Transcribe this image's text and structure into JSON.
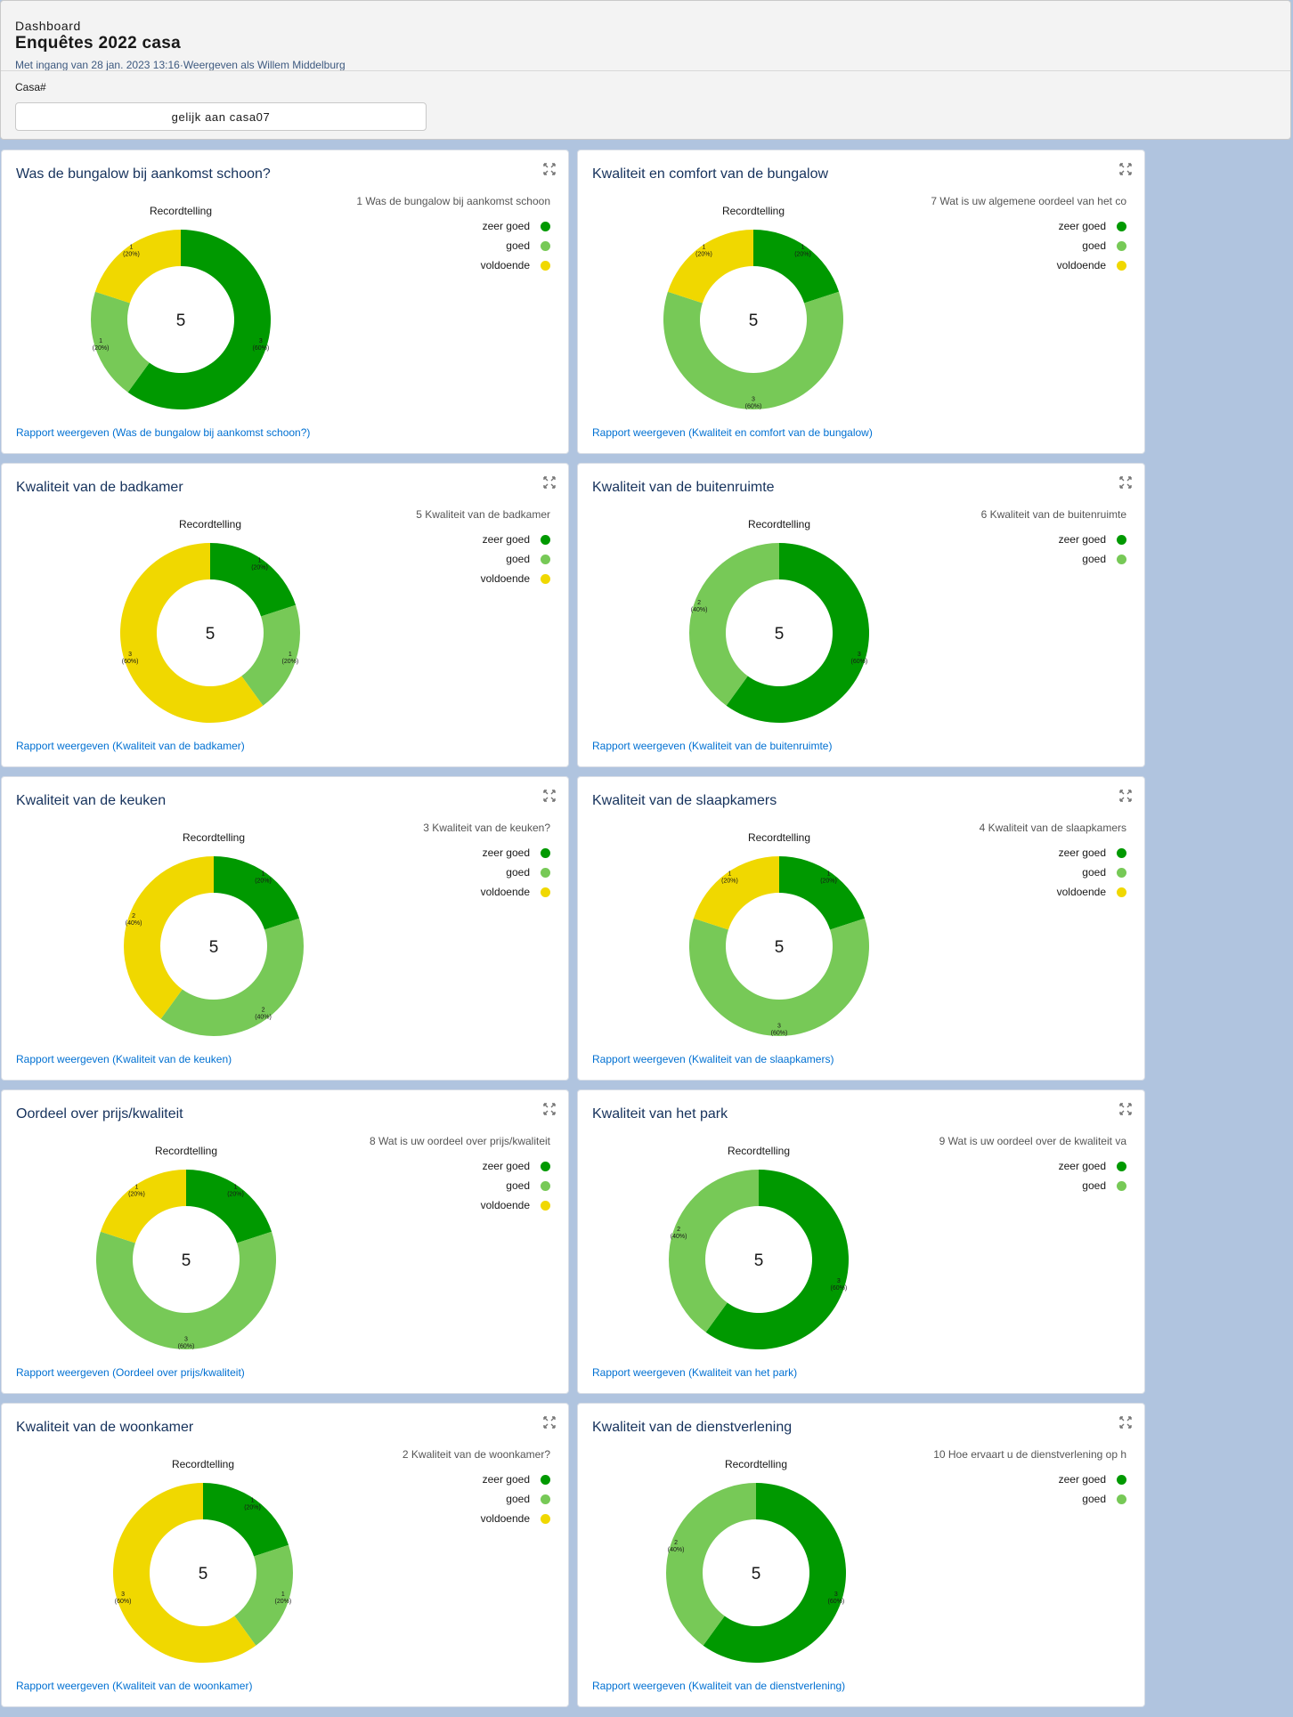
{
  "header": {
    "breadcrumb": "Dashboard",
    "title": "Enquêtes 2022 casa",
    "as_of": "Met ingang van 28 jan. 2023 13:16",
    "separator": "·",
    "view_as": "Weergeven als Willem Middelburg",
    "filter_label": "Casa#",
    "filter_value": "gelijk aan casa07"
  },
  "colors": {
    "zeer goed": "#009900",
    "goed": "#77c957",
    "voldoende": "#f0d800"
  },
  "rec_label": "Recordtelling",
  "cards": [
    {
      "title": "Was de bungalow bij aankomst schoon?",
      "legend_title": "1 Was de bungalow bij aankomst schoon",
      "total": "5",
      "link": "Rapport weergeven (Was de bungalow bij aankomst schoon?)",
      "chart_data": {
        "type": "pie",
        "categories": [
          "zeer goed",
          "goed",
          "voldoende"
        ],
        "values": [
          3,
          1,
          1
        ],
        "labels": [
          "3 (60%)",
          "1 (20%)",
          "1 (20%)"
        ]
      }
    },
    {
      "title": "Kwaliteit en comfort van de bungalow",
      "legend_title": "7 Wat is uw  algemene oordeel van het co",
      "total": "5",
      "link": "Rapport weergeven (Kwaliteit en comfort van de bungalow)",
      "chart_data": {
        "type": "pie",
        "categories": [
          "zeer goed",
          "goed",
          "voldoende"
        ],
        "values": [
          1,
          3,
          1
        ],
        "labels": [
          "1 (20%)",
          "3 (60%)",
          "1 (20%)"
        ]
      }
    },
    {
      "title": "Kwaliteit van de badkamer",
      "legend_title": "5 Kwaliteit van de badkamer",
      "total": "5",
      "link": "Rapport weergeven (Kwaliteit van de badkamer)",
      "chart_data": {
        "type": "pie",
        "categories": [
          "zeer goed",
          "goed",
          "voldoende"
        ],
        "values": [
          1,
          1,
          3
        ],
        "labels": [
          "1 (20%)",
          "1 (20%)",
          "3 (60%)"
        ]
      }
    },
    {
      "title": "Kwaliteit van de buitenruimte",
      "legend_title": "6 Kwaliteit van de buitenruimte",
      "total": "5",
      "link": "Rapport weergeven (Kwaliteit van de buitenruimte)",
      "chart_data": {
        "type": "pie",
        "categories": [
          "zeer goed",
          "goed"
        ],
        "values": [
          3,
          2
        ],
        "labels": [
          "3 (60%)",
          "2 (40%)"
        ]
      }
    },
    {
      "title": "Kwaliteit van de keuken",
      "legend_title": "3 Kwaliteit van de keuken?",
      "total": "5",
      "link": "Rapport weergeven (Kwaliteit van de keuken)",
      "chart_data": {
        "type": "pie",
        "categories": [
          "zeer goed",
          "goed",
          "voldoende"
        ],
        "values": [
          1,
          2,
          2
        ],
        "labels": [
          "1 (20%)",
          "2 (40%)",
          "2 (40%)"
        ]
      }
    },
    {
      "title": "Kwaliteit van de slaapkamers",
      "legend_title": "4 Kwaliteit van de slaapkamers",
      "total": "5",
      "link": "Rapport weergeven (Kwaliteit van de slaapkamers)",
      "chart_data": {
        "type": "pie",
        "categories": [
          "zeer goed",
          "goed",
          "voldoende"
        ],
        "values": [
          1,
          3,
          1
        ],
        "labels": [
          "1 (20%)",
          "3 (60%)",
          "1 (20%)"
        ]
      }
    },
    {
      "title": "Oordeel over prijs/kwaliteit",
      "legend_title": "8 Wat is uw oordeel over prijs/kwaliteit",
      "total": "5",
      "link": "Rapport weergeven (Oordeel over prijs/kwaliteit)",
      "chart_data": {
        "type": "pie",
        "categories": [
          "zeer goed",
          "goed",
          "voldoende"
        ],
        "values": [
          1,
          3,
          1
        ],
        "labels": [
          "1 (20%)",
          "3 (60%)",
          "1 (20%)"
        ]
      }
    },
    {
      "title": "Kwaliteit van het park",
      "legend_title": "9 Wat is uw oordeel over de kwaliteit va",
      "total": "5",
      "link": "Rapport weergeven (Kwaliteit van het park)",
      "chart_data": {
        "type": "pie",
        "categories": [
          "zeer goed",
          "goed"
        ],
        "values": [
          3,
          2
        ],
        "labels": [
          "3 (60%)",
          "2 (40%)"
        ]
      }
    },
    {
      "title": "Kwaliteit van de woonkamer",
      "legend_title": "2 Kwaliteit van de woonkamer?",
      "total": "5",
      "link": "Rapport weergeven (Kwaliteit van de woonkamer)",
      "chart_data": {
        "type": "pie",
        "categories": [
          "zeer goed",
          "goed",
          "voldoende"
        ],
        "values": [
          1,
          1,
          3
        ],
        "labels": [
          "1 (20%)",
          "1 (20%)",
          "3 (60%)"
        ]
      }
    },
    {
      "title": "Kwaliteit van de dienstverlening",
      "legend_title": "10 Hoe ervaart u de dienstverlening op h",
      "total": "5",
      "link": "Rapport weergeven (Kwaliteit van de dienstverlening)",
      "chart_data": {
        "type": "pie",
        "categories": [
          "zeer goed",
          "goed"
        ],
        "values": [
          3,
          2
        ],
        "labels": [
          "3 (60%)",
          "2 (40%)"
        ]
      }
    }
  ]
}
